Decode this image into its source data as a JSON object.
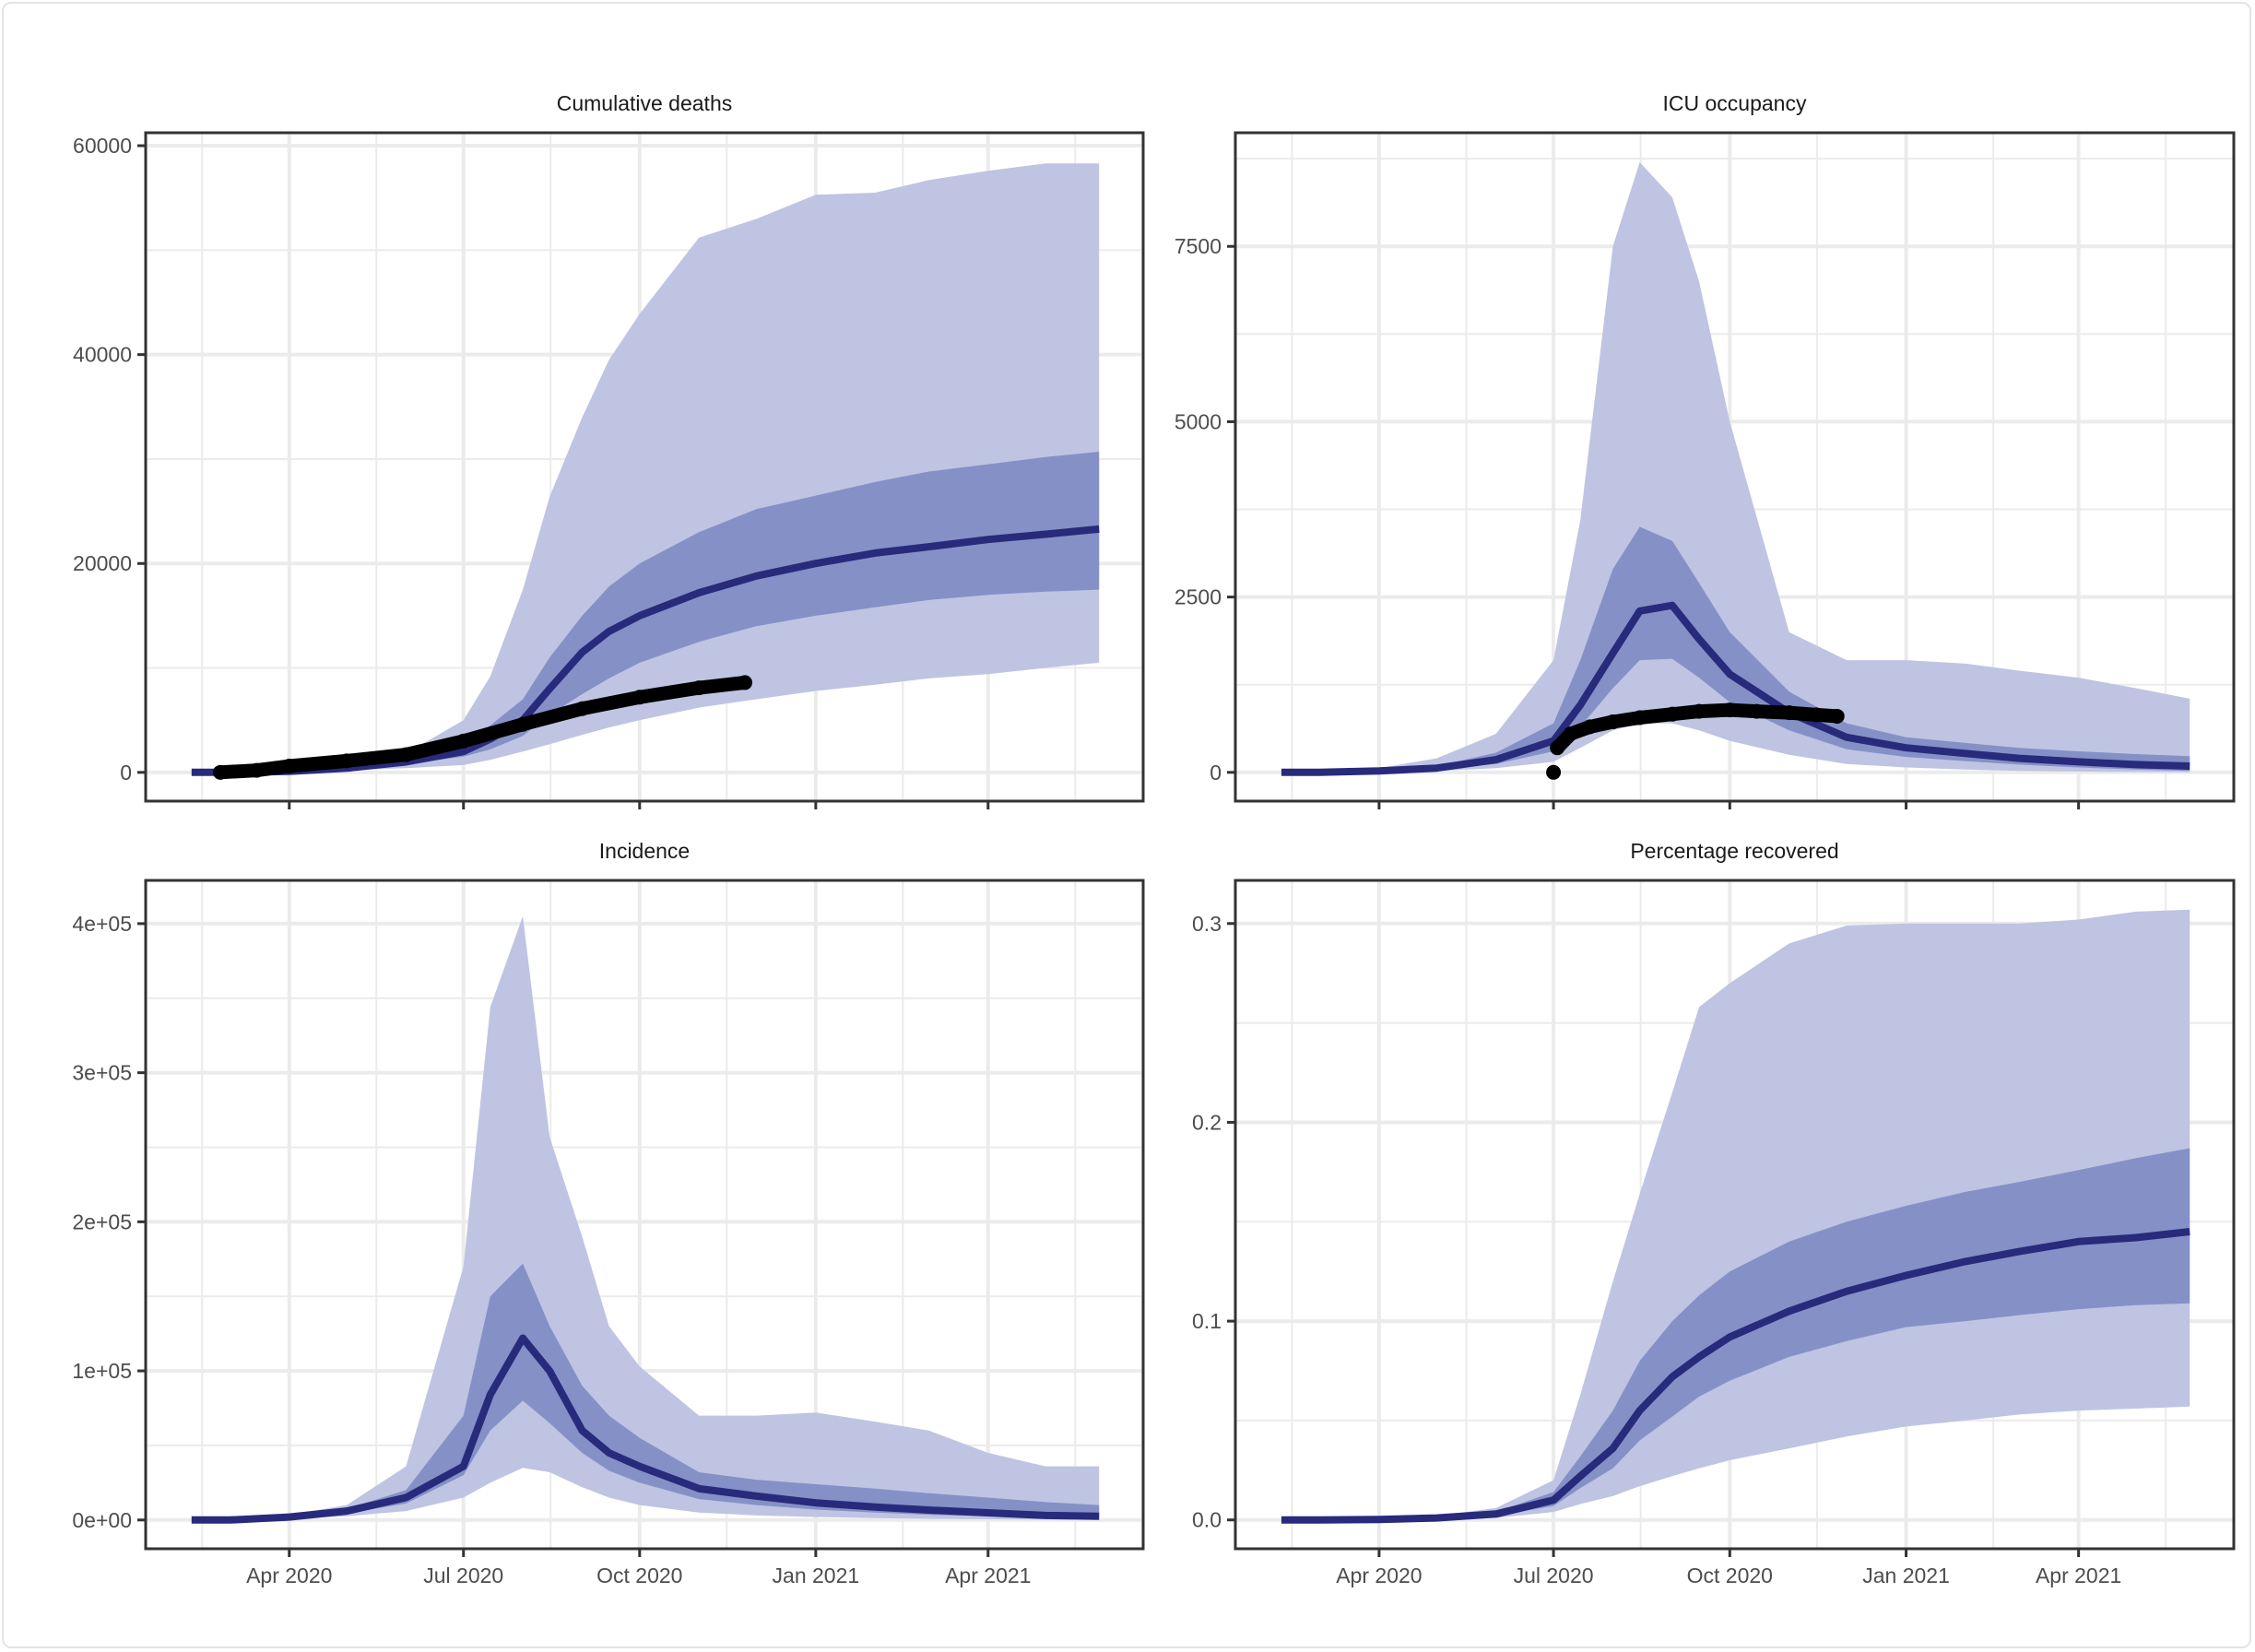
{
  "colors": {
    "band95": "#bfc4e3",
    "band50": "#8591c6",
    "median": "#282a7c",
    "observed": "#000000",
    "grid": "#ebebeb",
    "axis": "#333333"
  },
  "dates": [
    "2020-02-10",
    "2020-03-01",
    "2020-04-01",
    "2020-05-01",
    "2020-06-01",
    "2020-07-01",
    "2020-07-15",
    "2020-08-01",
    "2020-08-15",
    "2020-09-01",
    "2020-09-15",
    "2020-10-01",
    "2020-11-01",
    "2020-12-01",
    "2021-01-01",
    "2021-02-01",
    "2021-03-01",
    "2021-04-01",
    "2021-05-01",
    "2021-05-29"
  ],
  "chart_data": [
    {
      "type": "area",
      "title": "Cumulative deaths",
      "xlabel": "",
      "ylabel": "",
      "x_ticks": [
        "Apr 2020",
        "Jul 2020",
        "Oct 2020",
        "Jan 2021",
        "Apr 2021"
      ],
      "x_tick_dates": [
        "2020-04-01",
        "2020-07-01",
        "2020-10-01",
        "2021-01-01",
        "2021-04-01"
      ],
      "xlim": [
        "2020-01-17",
        "2021-06-21"
      ],
      "y_ticks": [
        0,
        20000,
        40000,
        60000
      ],
      "y_tick_labels": [
        "0",
        "20000",
        "40000",
        "60000"
      ],
      "ylim": [
        -2750,
        61240
      ],
      "grid": true,
      "median": [
        0,
        0,
        100,
        400,
        1000,
        2000,
        3200,
        5000,
        8000,
        11500,
        13500,
        15000,
        17200,
        18800,
        20000,
        21000,
        21600,
        22300,
        22800,
        23300
      ],
      "upper50": [
        0,
        0,
        150,
        500,
        1300,
        2800,
        4500,
        7000,
        11000,
        15000,
        17800,
        20000,
        23000,
        25200,
        26500,
        27800,
        28800,
        29500,
        30200,
        30700
      ],
      "lower50": [
        0,
        0,
        80,
        300,
        800,
        1500,
        2200,
        3500,
        5500,
        7500,
        9000,
        10500,
        12500,
        14000,
        15000,
        15800,
        16500,
        17000,
        17300,
        17500
      ],
      "upper95": [
        0,
        0,
        200,
        700,
        1800,
        5000,
        9200,
        17500,
        26400,
        34000,
        39500,
        43900,
        51200,
        53000,
        55300,
        55500,
        56700,
        57600,
        58300,
        58300
      ],
      "lower95": [
        0,
        0,
        50,
        200,
        400,
        700,
        1200,
        2000,
        2700,
        3600,
        4300,
        5000,
        6200,
        7000,
        7800,
        8400,
        9000,
        9400,
        10000,
        10500
      ],
      "observed": {
        "dates": [
          "2020-02-25",
          "2020-03-15",
          "2020-04-01",
          "2020-05-01",
          "2020-06-01",
          "2020-07-01",
          "2020-08-01",
          "2020-09-01",
          "2020-10-01",
          "2020-11-01",
          "2020-11-25"
        ],
        "values": [
          0,
          200,
          600,
          1100,
          1700,
          3000,
          4600,
          6100,
          7200,
          8100,
          8600
        ]
      }
    },
    {
      "type": "area",
      "title": "ICU occupancy",
      "xlabel": "",
      "ylabel": "",
      "x_ticks": [
        "Apr 2020",
        "Jul 2020",
        "Oct 2020",
        "Jan 2021",
        "Apr 2021"
      ],
      "x_tick_dates": [
        "2020-04-01",
        "2020-07-01",
        "2020-10-01",
        "2021-01-01",
        "2021-04-01"
      ],
      "xlim": [
        "2020-01-17",
        "2021-06-21"
      ],
      "y_ticks": [
        0,
        2500,
        5000,
        7500
      ],
      "y_tick_labels": [
        "0",
        "2500",
        "5000",
        "7500"
      ],
      "ylim": [
        -410,
        9120
      ],
      "grid": true,
      "median": [
        0,
        0,
        20,
        60,
        180,
        450,
        960,
        1700,
        2300,
        2380,
        1900,
        1400,
        850,
        500,
        350,
        270,
        200,
        150,
        110,
        90
      ],
      "upper50": [
        0,
        0,
        30,
        90,
        280,
        700,
        1600,
        2900,
        3500,
        3300,
        2700,
        2000,
        1150,
        700,
        500,
        420,
        350,
        300,
        260,
        230
      ],
      "lower50": [
        0,
        0,
        10,
        40,
        120,
        300,
        650,
        1200,
        1600,
        1620,
        1350,
        1000,
        600,
        330,
        220,
        160,
        110,
        70,
        40,
        20
      ],
      "upper95": [
        0,
        0,
        60,
        200,
        550,
        1600,
        3600,
        7500,
        8700,
        8200,
        7000,
        5000,
        2000,
        1600,
        1600,
        1550,
        1450,
        1350,
        1200,
        1050
      ],
      "lower95": [
        0,
        0,
        5,
        20,
        60,
        150,
        350,
        600,
        700,
        700,
        600,
        450,
        250,
        120,
        70,
        40,
        20,
        10,
        5,
        0
      ],
      "observed": {
        "dates": [
          "2020-07-01",
          "2020-07-03",
          "2020-07-10",
          "2020-07-20",
          "2020-08-01",
          "2020-08-15",
          "2020-09-01",
          "2020-09-15",
          "2020-10-01",
          "2020-10-15",
          "2020-11-01",
          "2020-11-15",
          "2020-11-26"
        ],
        "values": [
          0,
          350,
          550,
          650,
          720,
          780,
          830,
          870,
          890,
          870,
          850,
          820,
          800
        ]
      }
    },
    {
      "type": "area",
      "title": "Incidence",
      "xlabel": "",
      "ylabel": "",
      "x_ticks": [
        "Apr 2020",
        "Jul 2020",
        "Oct 2020",
        "Jan 2021",
        "Apr 2021"
      ],
      "x_tick_dates": [
        "2020-04-01",
        "2020-07-01",
        "2020-10-01",
        "2021-01-01",
        "2021-04-01"
      ],
      "xlim": [
        "2020-01-17",
        "2021-06-21"
      ],
      "y_ticks": [
        0,
        100000,
        200000,
        300000,
        400000
      ],
      "y_tick_labels": [
        "0e+00",
        "1e+05",
        "2e+05",
        "3e+05",
        "4e+05"
      ],
      "ylim": [
        -19300,
        429000
      ],
      "grid": true,
      "median": [
        0,
        0,
        2000,
        6000,
        15000,
        36000,
        84000,
        122000,
        100000,
        60000,
        45000,
        36000,
        21000,
        16000,
        11500,
        8700,
        6700,
        4800,
        3000,
        2500
      ],
      "upper50": [
        0,
        0,
        2500,
        7500,
        20000,
        70000,
        150000,
        172000,
        130000,
        90000,
        70000,
        55000,
        32000,
        27000,
        24000,
        21000,
        18000,
        15000,
        12000,
        10000
      ],
      "lower50": [
        0,
        0,
        1500,
        4500,
        11000,
        30000,
        60000,
        80000,
        65000,
        45000,
        33000,
        25000,
        14000,
        10000,
        7000,
        5000,
        3500,
        2500,
        1500,
        1000
      ],
      "upper95": [
        0,
        0,
        3500,
        10000,
        36000,
        170000,
        344000,
        405000,
        257000,
        190000,
        130000,
        103000,
        70000,
        70000,
        72000,
        66000,
        60000,
        45000,
        36000,
        36000
      ],
      "lower95": [
        0,
        0,
        800,
        2500,
        6000,
        15000,
        25000,
        35000,
        32000,
        22000,
        15000,
        10000,
        5000,
        3000,
        2000,
        1200,
        800,
        500,
        300,
        200
      ]
    },
    {
      "type": "area",
      "title": "Percentage recovered",
      "xlabel": "",
      "ylabel": "",
      "x_ticks": [
        "Apr 2020",
        "Jul 2020",
        "Oct 2020",
        "Jan 2021",
        "Apr 2021"
      ],
      "x_tick_dates": [
        "2020-04-01",
        "2020-07-01",
        "2020-10-01",
        "2021-01-01",
        "2021-04-01"
      ],
      "xlim": [
        "2020-01-17",
        "2021-06-21"
      ],
      "y_ticks": [
        0,
        0.1,
        0.2,
        0.3
      ],
      "y_tick_labels": [
        "0.0",
        "0.1",
        "0.2",
        "0.3"
      ],
      "ylim": [
        -0.0145,
        0.3217
      ],
      "grid": true,
      "median": [
        0,
        0,
        0.0002,
        0.001,
        0.003,
        0.01,
        0.022,
        0.036,
        0.055,
        0.072,
        0.082,
        0.092,
        0.105,
        0.115,
        0.123,
        0.13,
        0.135,
        0.14,
        0.142,
        0.145
      ],
      "upper50": [
        0,
        0,
        0.0003,
        0.0015,
        0.004,
        0.014,
        0.032,
        0.055,
        0.08,
        0.1,
        0.113,
        0.125,
        0.14,
        0.15,
        0.158,
        0.165,
        0.17,
        0.176,
        0.182,
        0.187
      ],
      "lower50": [
        0,
        0,
        0.0001,
        0.0008,
        0.002,
        0.007,
        0.016,
        0.026,
        0.04,
        0.052,
        0.062,
        0.07,
        0.082,
        0.09,
        0.097,
        0.1,
        0.103,
        0.106,
        0.108,
        0.109
      ],
      "upper95": [
        0,
        0,
        0.0005,
        0.002,
        0.006,
        0.02,
        0.063,
        0.12,
        0.164,
        0.215,
        0.258,
        0.27,
        0.29,
        0.299,
        0.3,
        0.3,
        0.3,
        0.302,
        0.306,
        0.307
      ],
      "lower95": [
        0,
        0,
        0,
        0.0005,
        0.001,
        0.004,
        0.008,
        0.012,
        0.017,
        0.022,
        0.026,
        0.03,
        0.036,
        0.042,
        0.047,
        0.05,
        0.053,
        0.055,
        0.056,
        0.057
      ]
    }
  ]
}
